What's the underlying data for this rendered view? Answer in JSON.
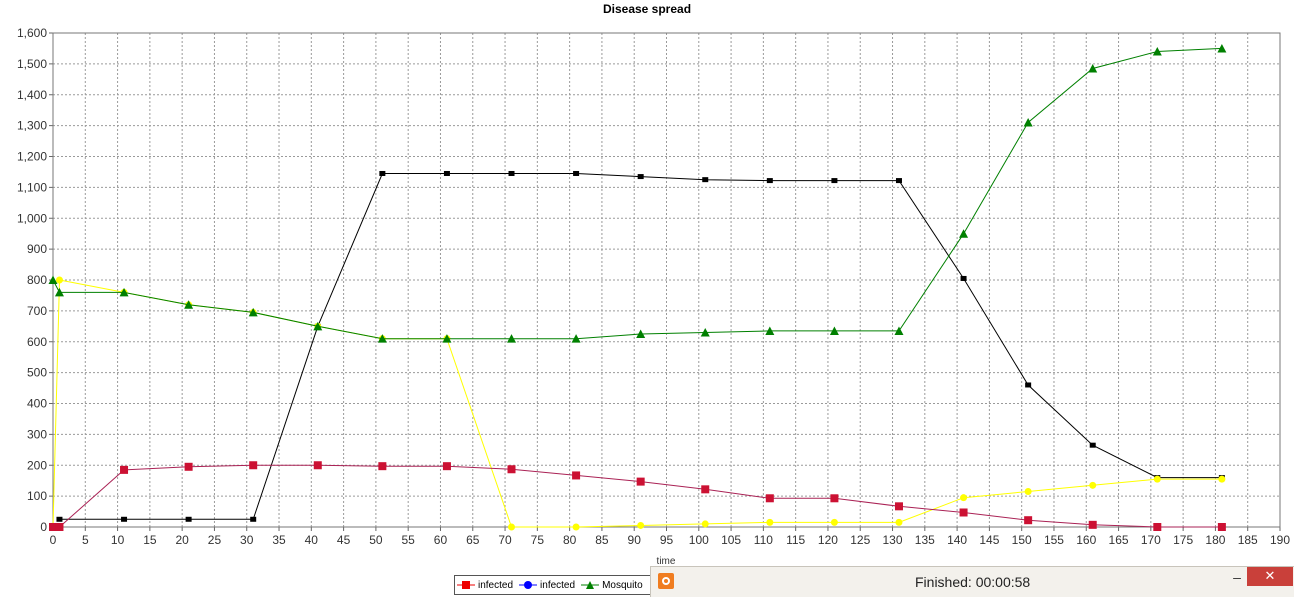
{
  "chart_data": {
    "type": "line",
    "title": "Disease spread",
    "xlabel": "time",
    "ylabel": "",
    "xlim": [
      0,
      190
    ],
    "ylim": [
      0,
      1600
    ],
    "x_ticks": [
      "0",
      "5",
      "10",
      "15",
      "20",
      "25",
      "30",
      "35",
      "40",
      "45",
      "50",
      "55",
      "60",
      "65",
      "70",
      "75",
      "80",
      "85",
      "90",
      "95",
      "100",
      "105",
      "110",
      "115",
      "120",
      "125",
      "130",
      "135",
      "140",
      "145",
      "150",
      "155",
      "160",
      "165",
      "170",
      "175",
      "180",
      "185",
      "190"
    ],
    "y_ticks": [
      "0",
      "100",
      "200",
      "300",
      "400",
      "500",
      "600",
      "700",
      "800",
      "900",
      "1,000",
      "1,100",
      "1,200",
      "1,300",
      "1,400",
      "1,500",
      "1,600"
    ],
    "grid": true,
    "series": [
      {
        "name": "",
        "color": "#000000",
        "marker": "square-small",
        "x": [
          1,
          11,
          21,
          31,
          41,
          51,
          61,
          71,
          81,
          91,
          101,
          111,
          121,
          131,
          141,
          151,
          161,
          171,
          181
        ],
        "y": [
          25,
          25,
          25,
          25,
          650,
          1145,
          1145,
          1145,
          1145,
          1135,
          1125,
          1122,
          1122,
          1122,
          805,
          460,
          265,
          160,
          160
        ]
      },
      {
        "name": "",
        "color": "#ffff00",
        "marker": "circle",
        "x": [
          0,
          1,
          11,
          21,
          31,
          41,
          51,
          61,
          71,
          81,
          91,
          101,
          111,
          121,
          131,
          141,
          151,
          161,
          171,
          181
        ],
        "y": [
          0,
          800,
          760,
          720,
          695,
          650,
          610,
          610,
          0,
          0,
          5,
          10,
          15,
          15,
          15,
          95,
          115,
          135,
          155,
          155
        ]
      },
      {
        "name": "infected",
        "color": "#cc1133",
        "line_color": "#aa2255",
        "marker": "square",
        "x": [
          0,
          1,
          11,
          21,
          31,
          41,
          51,
          61,
          71,
          81,
          91,
          101,
          111,
          121,
          131,
          141,
          151,
          161,
          171,
          181
        ],
        "y": [
          0,
          0,
          185,
          195,
          200,
          200,
          197,
          197,
          187,
          167,
          147,
          122,
          93,
          93,
          67,
          47,
          22,
          7,
          0,
          0
        ]
      },
      {
        "name": "infected",
        "color": "#0000ff",
        "marker": "circle",
        "x": [],
        "y": []
      },
      {
        "name": "Mosquito",
        "color": "#008000",
        "marker": "triangle",
        "x": [
          0,
          1,
          11,
          21,
          31,
          41,
          51,
          61,
          71,
          81,
          91,
          101,
          111,
          121,
          131,
          141,
          151,
          161,
          171,
          181
        ],
        "y": [
          800,
          760,
          760,
          720,
          695,
          650,
          610,
          610,
          610,
          610,
          625,
          630,
          635,
          635,
          635,
          950,
          1310,
          1485,
          1540,
          1550
        ]
      }
    ]
  },
  "legend": {
    "items": [
      {
        "label": "infected",
        "color": "#ee0000",
        "marker": "square"
      },
      {
        "label": "infected",
        "color": "#0000ff",
        "marker": "circle"
      },
      {
        "label": "Mosquito",
        "color": "#008000",
        "marker": "triangle"
      }
    ]
  },
  "status_window": {
    "text": "Finished:  00:00:58",
    "minimize_glyph": "–",
    "close_glyph": "✕"
  }
}
